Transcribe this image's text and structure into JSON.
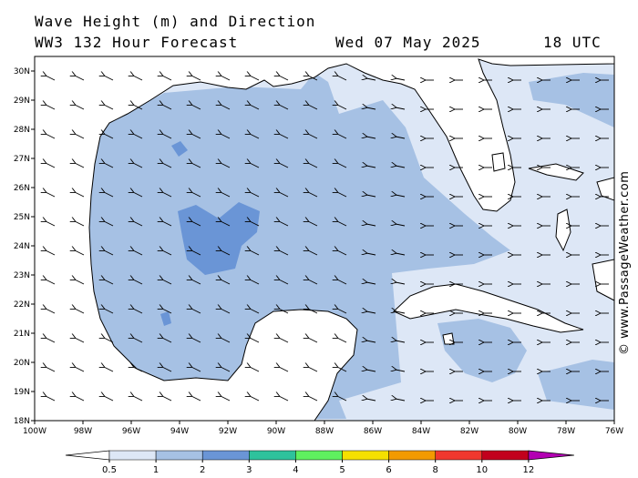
{
  "header": {
    "title": "Wave Height (m) and Direction",
    "model": "WW3 132 Hour Forecast",
    "date": "Wed 07 May 2025",
    "time": "18 UTC"
  },
  "credit": "© www.PassageWeather.com",
  "map": {
    "lon_range": [
      -100,
      -76
    ],
    "lat_range": [
      18,
      30.5
    ],
    "lon_ticks": [
      "100W",
      "98W",
      "96W",
      "94W",
      "92W",
      "90W",
      "88W",
      "86W",
      "84W",
      "82W",
      "80W",
      "78W",
      "76W"
    ],
    "lat_ticks": [
      "18N",
      "19N",
      "20N",
      "21N",
      "22N",
      "23N",
      "24N",
      "25N",
      "26N",
      "27N",
      "28N",
      "29N",
      "30N"
    ],
    "arrow_direction": "wave direction toward west-northwest (easterly swell)",
    "colors": {
      "land": "#ffffff",
      "band_0_5_1": "#dde7f6",
      "band_1_2": "#a6c1e4",
      "band_2_3": "#6a95d6"
    }
  },
  "legend": {
    "labels": [
      "0.5",
      "1",
      "2",
      "3",
      "4",
      "5",
      "6",
      "8",
      "10",
      "12"
    ],
    "colors": [
      "#dde7f6",
      "#a6c1e4",
      "#6a95d6",
      "#2ec29c",
      "#5ff05f",
      "#f5e000",
      "#f29a00",
      "#f0382e",
      "#c2001d",
      "#b300b3"
    ]
  }
}
